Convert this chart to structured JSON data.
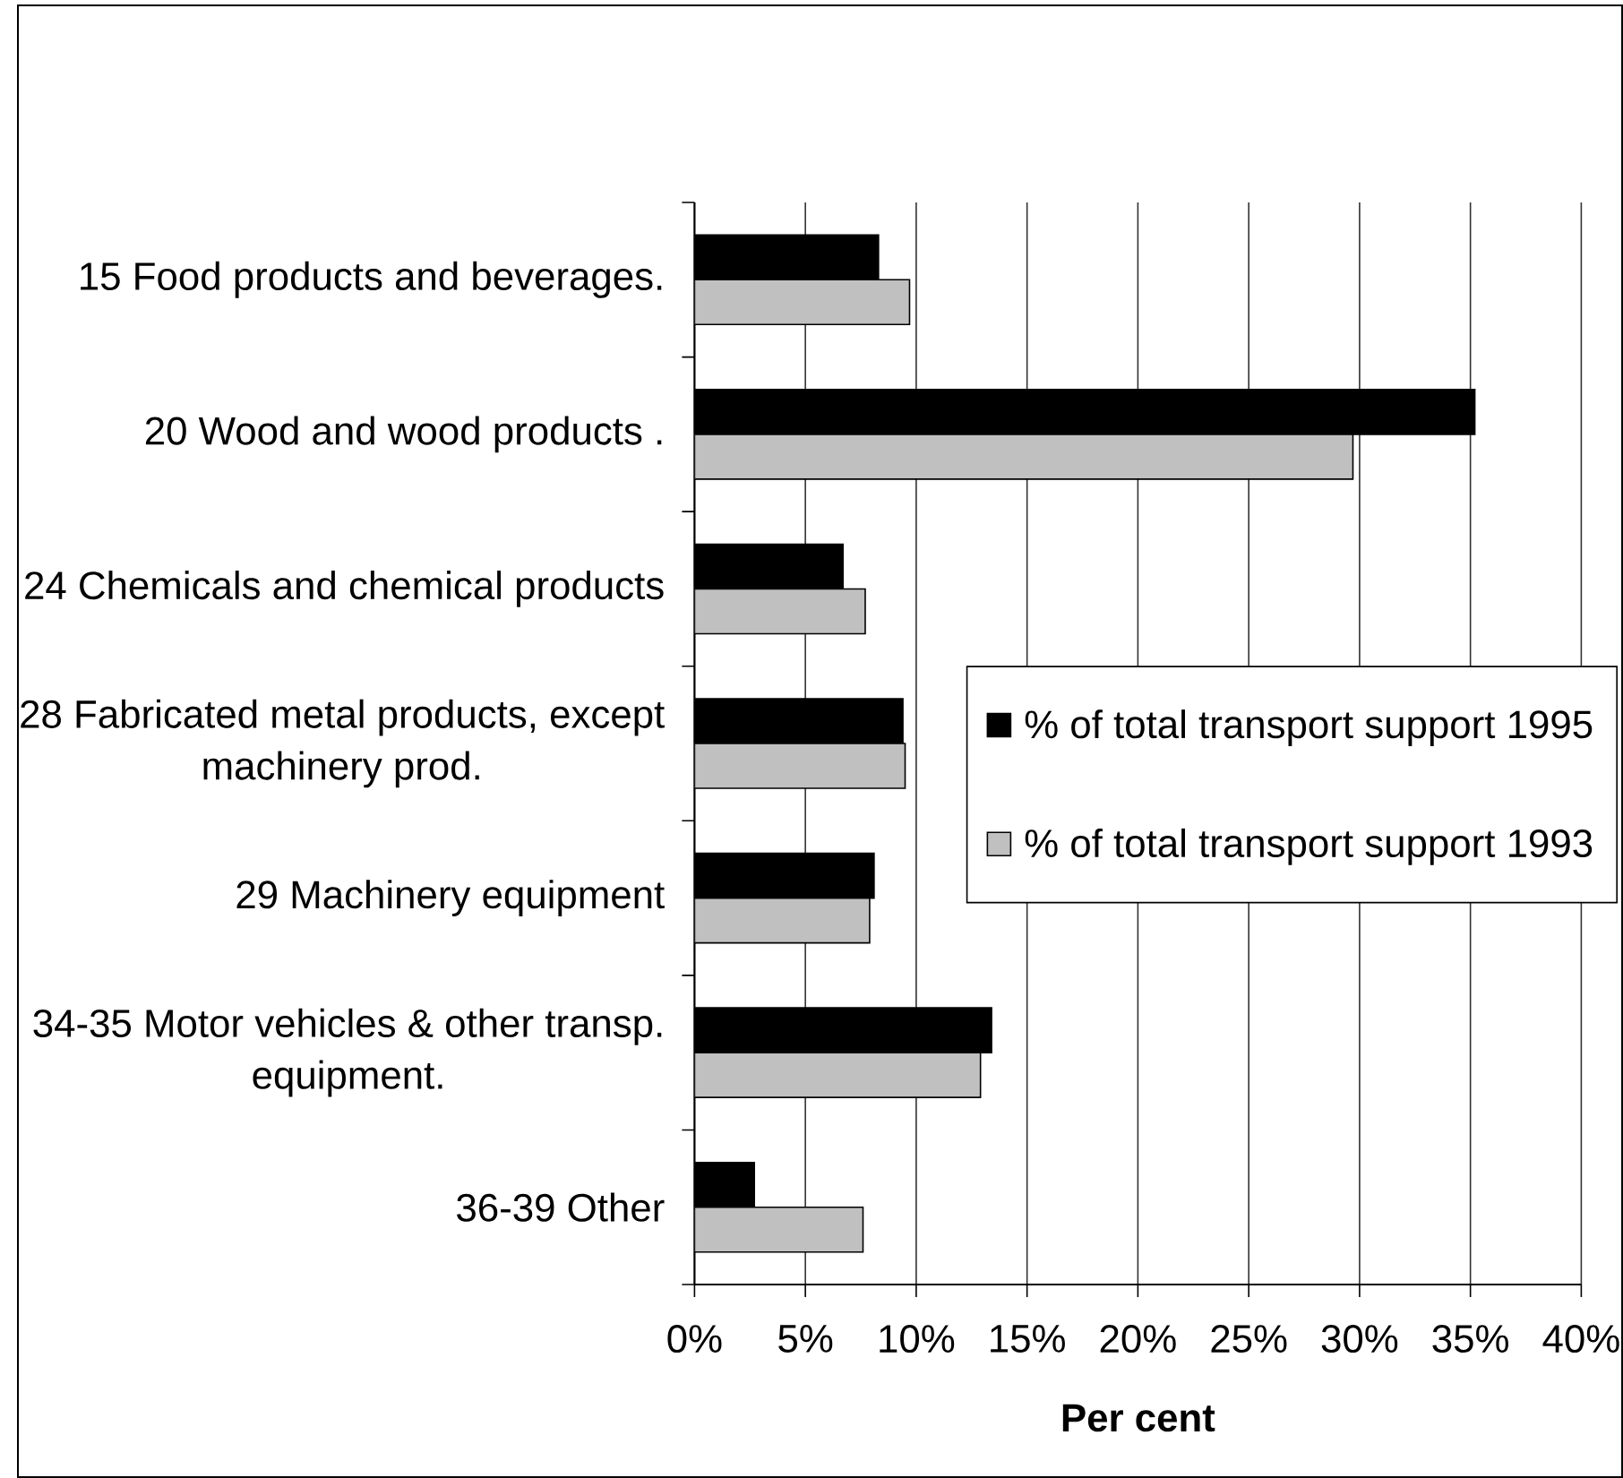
{
  "chart_data": {
    "type": "bar",
    "orientation": "horizontal",
    "xlabel": "Per cent",
    "categories": [
      "15 Food products and beverages.",
      "20 Wood and wood products .",
      "24 Chemicals and chemical products",
      "28 Fabricated metal products, except machinery prod.",
      "29 Machinery equipment",
      "34-35 Motor vehicles & other transp. equipment.",
      "36-39 Other"
    ],
    "series": [
      {
        "name": "% of total transport support 1995",
        "color": "#000000",
        "values": [
          8.3,
          35.2,
          6.7,
          9.4,
          8.1,
          13.4,
          2.7
        ]
      },
      {
        "name": "% of total transport support 1993",
        "color": "#c0c0c0",
        "values": [
          9.7,
          29.7,
          7.7,
          9.5,
          7.9,
          12.9,
          7.6
        ]
      }
    ],
    "xlim": [
      0,
      40
    ],
    "xticks": [
      {
        "value": 0,
        "label": "0%"
      },
      {
        "value": 5,
        "label": "5%"
      },
      {
        "value": 10,
        "label": "10%"
      },
      {
        "value": 15,
        "label": "15%"
      },
      {
        "value": 20,
        "label": "20%"
      },
      {
        "value": 25,
        "label": "25%"
      },
      {
        "value": 30,
        "label": "30%"
      },
      {
        "value": 35,
        "label": "35%"
      },
      {
        "value": 40,
        "label": "40%"
      }
    ],
    "grid": "x",
    "legend": "right"
  }
}
